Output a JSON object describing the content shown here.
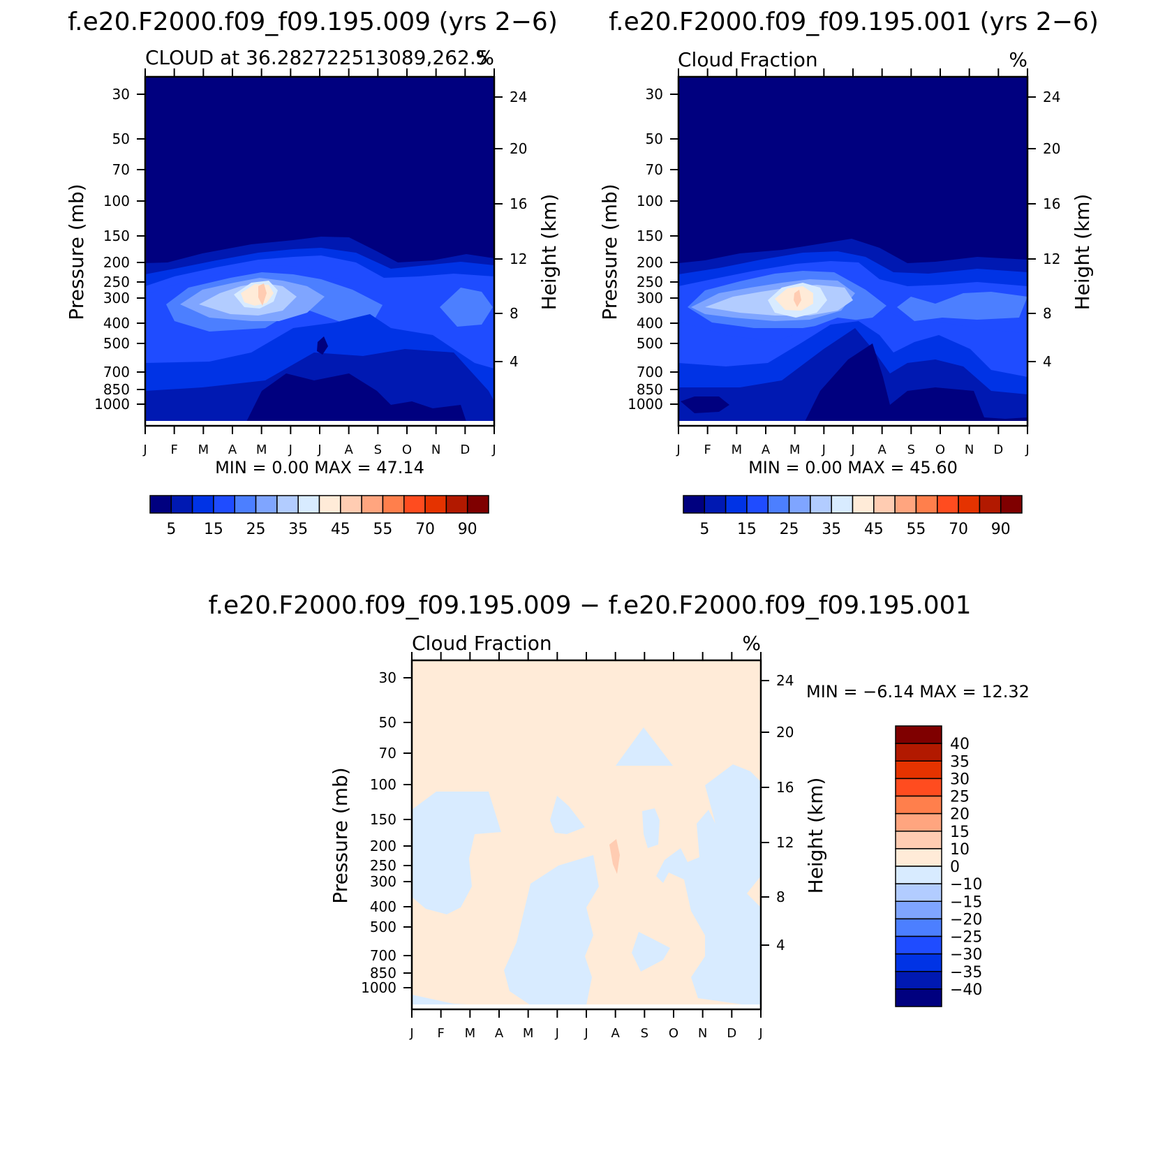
{
  "chart_data": [
    {
      "type": "heatmap",
      "panel": "top-left",
      "title": "f.e20.F2000.f09_f09.195.009 (yrs 2−6)",
      "subtitle_left": "CLOUD at 36.282722513089,262.5",
      "subtitle_right": "%",
      "ylabel": "Pressure (mb)",
      "ylabel_right": "Height (km)",
      "x_ticks": [
        "J",
        "F",
        "M",
        "A",
        "M",
        "J",
        "J",
        "A",
        "S",
        "O",
        "N",
        "D",
        "J"
      ],
      "y_ticks": [
        "30",
        "50",
        "70",
        "100",
        "150",
        "200",
        "250",
        "300",
        "400",
        "500",
        "700",
        "850",
        "1000"
      ],
      "y_ticks_right": [
        "24",
        "20",
        "16",
        "12",
        "8",
        "4"
      ],
      "stats": "MIN =     0.00  MAX =   47.14",
      "min": 0.0,
      "max": 47.14,
      "colorbar_labels": [
        "5",
        "15",
        "25",
        "35",
        "45",
        "55",
        "70",
        "90"
      ]
    },
    {
      "type": "heatmap",
      "panel": "top-right",
      "title": "f.e20.F2000.f09_f09.195.001 (yrs 2−6)",
      "subtitle_left": "Cloud Fraction",
      "subtitle_right": "%",
      "ylabel": "Pressure (mb)",
      "ylabel_right": "Height (km)",
      "x_ticks": [
        "J",
        "F",
        "M",
        "A",
        "M",
        "J",
        "J",
        "A",
        "S",
        "O",
        "N",
        "D",
        "J"
      ],
      "y_ticks": [
        "30",
        "50",
        "70",
        "100",
        "150",
        "200",
        "250",
        "300",
        "400",
        "500",
        "700",
        "850",
        "1000"
      ],
      "y_ticks_right": [
        "24",
        "20",
        "16",
        "12",
        "8",
        "4"
      ],
      "stats": "MIN =     0.00  MAX =   45.60",
      "min": 0.0,
      "max": 45.6,
      "colorbar_labels": [
        "5",
        "15",
        "25",
        "35",
        "45",
        "55",
        "70",
        "90"
      ]
    },
    {
      "type": "heatmap",
      "panel": "bottom",
      "title": "f.e20.F2000.f09_f09.195.009 − f.e20.F2000.f09_f09.195.001",
      "subtitle_left": "Cloud Fraction",
      "subtitle_right": "%",
      "ylabel": "Pressure (mb)",
      "ylabel_right": "Height (km)",
      "x_ticks": [
        "J",
        "F",
        "M",
        "A",
        "M",
        "J",
        "J",
        "A",
        "S",
        "O",
        "N",
        "D",
        "J"
      ],
      "y_ticks": [
        "30",
        "50",
        "70",
        "100",
        "150",
        "200",
        "250",
        "300",
        "400",
        "500",
        "700",
        "850",
        "1000"
      ],
      "y_ticks_right": [
        "24",
        "20",
        "16",
        "12",
        "8",
        "4"
      ],
      "stats": "MIN =   −6.14  MAX =   12.32",
      "min": -6.14,
      "max": 12.32,
      "colorbar_labels": [
        "40",
        "35",
        "30",
        "25",
        "20",
        "15",
        "10",
        "0",
        "−10",
        "−15",
        "−20",
        "−25",
        "−30",
        "−35",
        "−40"
      ]
    }
  ],
  "colors": {
    "seq": [
      "#00007f",
      "#0019b2",
      "#0033e5",
      "#1f4cff",
      "#4c7fff",
      "#7fa5ff",
      "#b2ccff",
      "#d8ebff",
      "#ffebd8",
      "#ffccb2",
      "#ffa57f",
      "#ff7f4c",
      "#ff4c1f",
      "#e53300",
      "#b21900",
      "#7f0000"
    ],
    "diff": [
      "#00007f",
      "#0019b2",
      "#0033e5",
      "#1f4cff",
      "#4c7fff",
      "#7fa5ff",
      "#b2ccff",
      "#d8ebff",
      "#ffebd8",
      "#ffccb2",
      "#ffa57f",
      "#ff7f4c",
      "#ff4c1f",
      "#e53300",
      "#b21900",
      "#7f0000"
    ]
  }
}
